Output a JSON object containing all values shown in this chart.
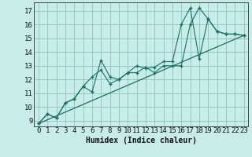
{
  "xlabel": "Humidex (Indice chaleur)",
  "bg_color": "#c8ede8",
  "grid_color": "#88c4bc",
  "line_color": "#1a6e68",
  "xlim": [
    -0.5,
    23.5
  ],
  "ylim": [
    8.6,
    17.6
  ],
  "xticks": [
    0,
    1,
    2,
    3,
    4,
    5,
    6,
    7,
    8,
    9,
    10,
    11,
    12,
    13,
    14,
    15,
    16,
    17,
    18,
    19,
    20,
    21,
    22,
    23
  ],
  "yticks": [
    9,
    10,
    11,
    12,
    13,
    14,
    15,
    16,
    17
  ],
  "line1_x": [
    0,
    1,
    2,
    3,
    4,
    5,
    6,
    7,
    8,
    9,
    10,
    11,
    12,
    13,
    14,
    15,
    16,
    17,
    18,
    19,
    20,
    21,
    22,
    23
  ],
  "line1_y": [
    8.8,
    9.5,
    9.2,
    10.3,
    10.6,
    11.5,
    11.1,
    13.4,
    12.2,
    12.0,
    12.5,
    12.5,
    12.9,
    12.5,
    13.0,
    13.0,
    13.0,
    16.0,
    17.2,
    16.4,
    15.5,
    15.3,
    15.3,
    15.2
  ],
  "line2_x": [
    0,
    1,
    2,
    3,
    4,
    5,
    6,
    7,
    8,
    9,
    10,
    11,
    12,
    13,
    14,
    15,
    16,
    17,
    18,
    19,
    20,
    21,
    22,
    23
  ],
  "line2_y": [
    8.8,
    9.5,
    9.2,
    10.3,
    10.6,
    11.5,
    12.2,
    12.7,
    11.7,
    12.0,
    12.5,
    13.0,
    12.8,
    12.9,
    13.3,
    13.3,
    16.0,
    17.2,
    13.5,
    16.4,
    15.5,
    15.3,
    15.3,
    15.2
  ],
  "line3_x": [
    0,
    23
  ],
  "line3_y": [
    8.8,
    15.2
  ]
}
